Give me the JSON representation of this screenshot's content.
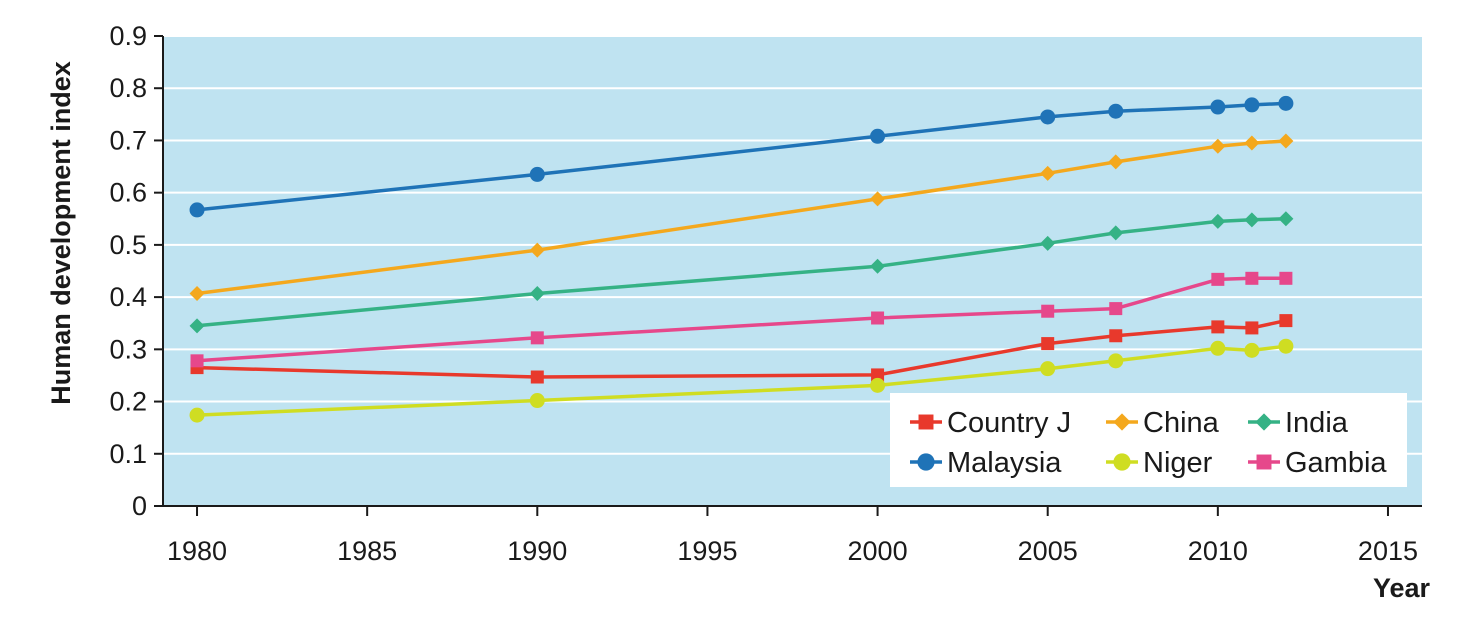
{
  "chart_data": {
    "type": "line",
    "xlabel": "Year",
    "ylabel": "Human development index",
    "xlim": [
      1979,
      2016
    ],
    "ylim": [
      0,
      0.9
    ],
    "x_ticks": [
      1980,
      1985,
      1990,
      1995,
      2000,
      2005,
      2010,
      2015
    ],
    "y_ticks": [
      0,
      0.1,
      0.2,
      0.3,
      0.4,
      0.5,
      0.6,
      0.7,
      0.8,
      0.9
    ],
    "x_tick_labels": [
      "1980",
      "1985",
      "1990",
      "1995",
      "2000",
      "2005",
      "2010",
      "2015"
    ],
    "y_tick_labels": [
      "0",
      "0.1",
      "0.2",
      "0.3",
      "0.4",
      "0.5",
      "0.6",
      "0.7",
      "0.8",
      "0.9"
    ],
    "grid": "horizontal",
    "plot_background": "#bfe3f1",
    "legend_position": "bottom-right",
    "x": [
      1980,
      1990,
      2000,
      2005,
      2007,
      2010,
      2011,
      2012
    ],
    "series": [
      {
        "name": "Country J",
        "marker": "square",
        "color": "#e8392c",
        "values": [
          0.265,
          0.247,
          0.251,
          0.311,
          0.326,
          0.343,
          0.341,
          0.355
        ]
      },
      {
        "name": "China",
        "marker": "diamond",
        "color": "#f4a81d",
        "values": [
          0.407,
          0.49,
          0.588,
          0.637,
          0.659,
          0.689,
          0.695,
          0.699
        ]
      },
      {
        "name": "India",
        "marker": "diamond",
        "color": "#35b285",
        "values": [
          0.345,
          0.407,
          0.459,
          0.503,
          0.523,
          0.545,
          0.548,
          0.55
        ]
      },
      {
        "name": "Malaysia",
        "marker": "circle",
        "color": "#1f73b7",
        "values": [
          0.567,
          0.635,
          0.708,
          0.745,
          0.756,
          0.764,
          0.768,
          0.771
        ]
      },
      {
        "name": "Niger",
        "marker": "circle",
        "color": "#cfdd22",
        "values": [
          0.174,
          0.202,
          0.231,
          0.263,
          0.278,
          0.302,
          0.298,
          0.306
        ]
      },
      {
        "name": "Gambia",
        "marker": "square",
        "color": "#e6488b",
        "values": [
          0.278,
          0.322,
          0.36,
          0.373,
          0.378,
          0.434,
          0.436,
          0.436
        ]
      }
    ]
  }
}
